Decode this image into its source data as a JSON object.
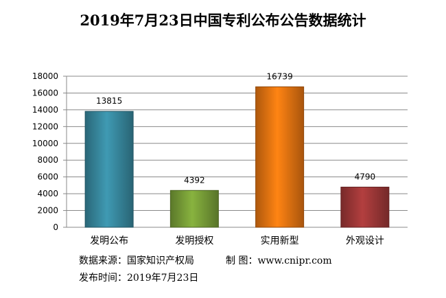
{
  "chart_data": {
    "type": "bar",
    "title": "2019年7月23日中国专利公布公告数据统计",
    "categories": [
      "发明公布",
      "发明授权",
      "实用新型",
      "外观设计"
    ],
    "values": [
      13815,
      4392,
      16739,
      4790
    ],
    "data_labels": [
      "13815",
      "4392",
      "16739",
      "4790"
    ],
    "ylim": [
      0,
      18000
    ],
    "yticks": [
      0,
      2000,
      4000,
      6000,
      8000,
      10000,
      12000,
      14000,
      16000,
      18000
    ],
    "ytick_labels": [
      "0",
      "2000",
      "4000",
      "6000",
      "8000",
      "10000",
      "12000",
      "14000",
      "16000",
      "18000"
    ],
    "grid": true,
    "legend": "none",
    "colors": [
      "#3a8fa6",
      "#7ea63a",
      "#f27a12",
      "#a63a3a"
    ]
  },
  "footer": {
    "source_label": "数据来源：国家知识产权局",
    "producer_label": "制  图：www.cnipr.com",
    "date_label": "发布时间：2019年7月23日"
  }
}
